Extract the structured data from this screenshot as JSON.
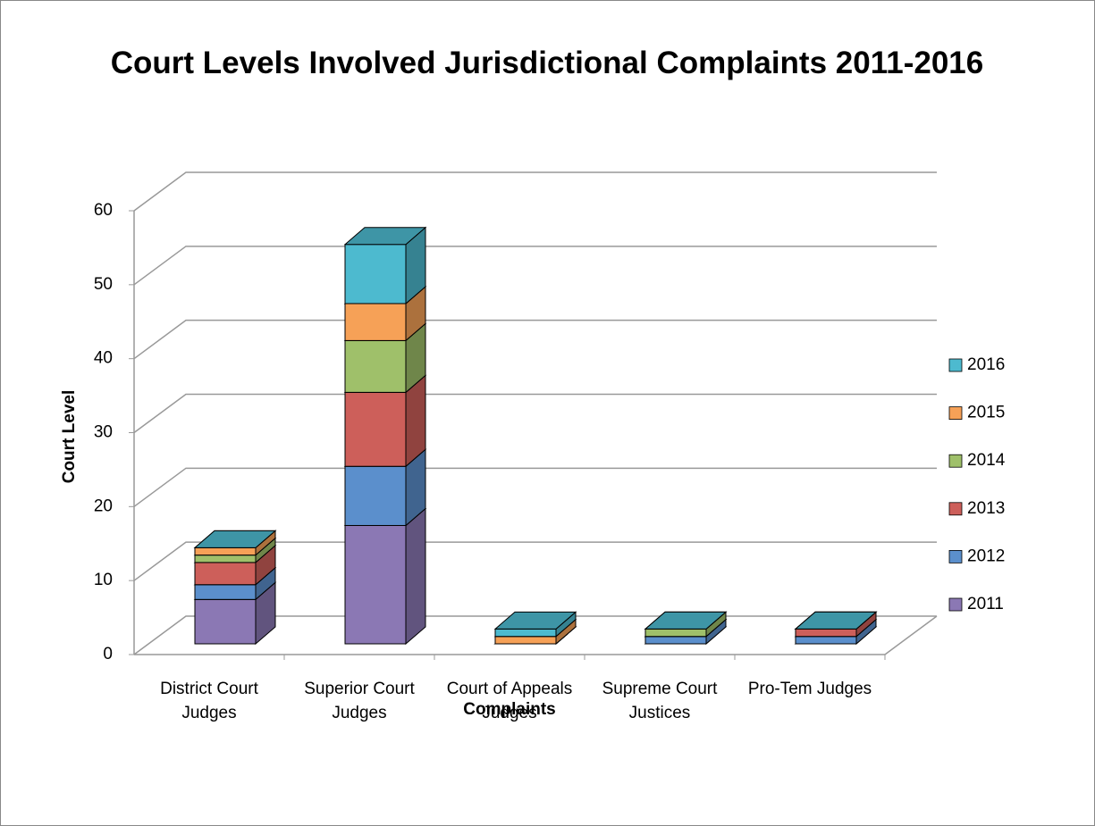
{
  "chart_data": {
    "type": "bar3d_stacked",
    "title": "Court Levels Involved Jurisdictional Complaints 2011-2016",
    "x_label": "Complaints",
    "y_label": "Court Level",
    "categories": [
      "District Court Judges",
      "Superior Court Judges",
      "Court of Appeals Judges",
      "Supreme Court Justices",
      "Pro-Tem Judges"
    ],
    "series": [
      {
        "name": "2011",
        "color": "#8b78b4",
        "values": [
          6,
          16,
          0,
          0,
          0
        ]
      },
      {
        "name": "2012",
        "color": "#5b8fcc",
        "values": [
          2,
          8,
          0,
          1,
          1
        ]
      },
      {
        "name": "2013",
        "color": "#cd5f5a",
        "values": [
          3,
          10,
          0,
          0,
          1
        ]
      },
      {
        "name": "2014",
        "color": "#9fc06a",
        "values": [
          1,
          7,
          0,
          1,
          0
        ]
      },
      {
        "name": "2015",
        "color": "#f6a157",
        "values": [
          1,
          5,
          1,
          0,
          0
        ]
      },
      {
        "name": "2016",
        "color": "#4dbacf",
        "values": [
          0,
          8,
          1,
          0,
          0
        ]
      }
    ],
    "ylim": [
      0,
      60
    ],
    "yticks": [
      0,
      10,
      20,
      30,
      40,
      50,
      60
    ],
    "grid": true,
    "legend": "right"
  }
}
